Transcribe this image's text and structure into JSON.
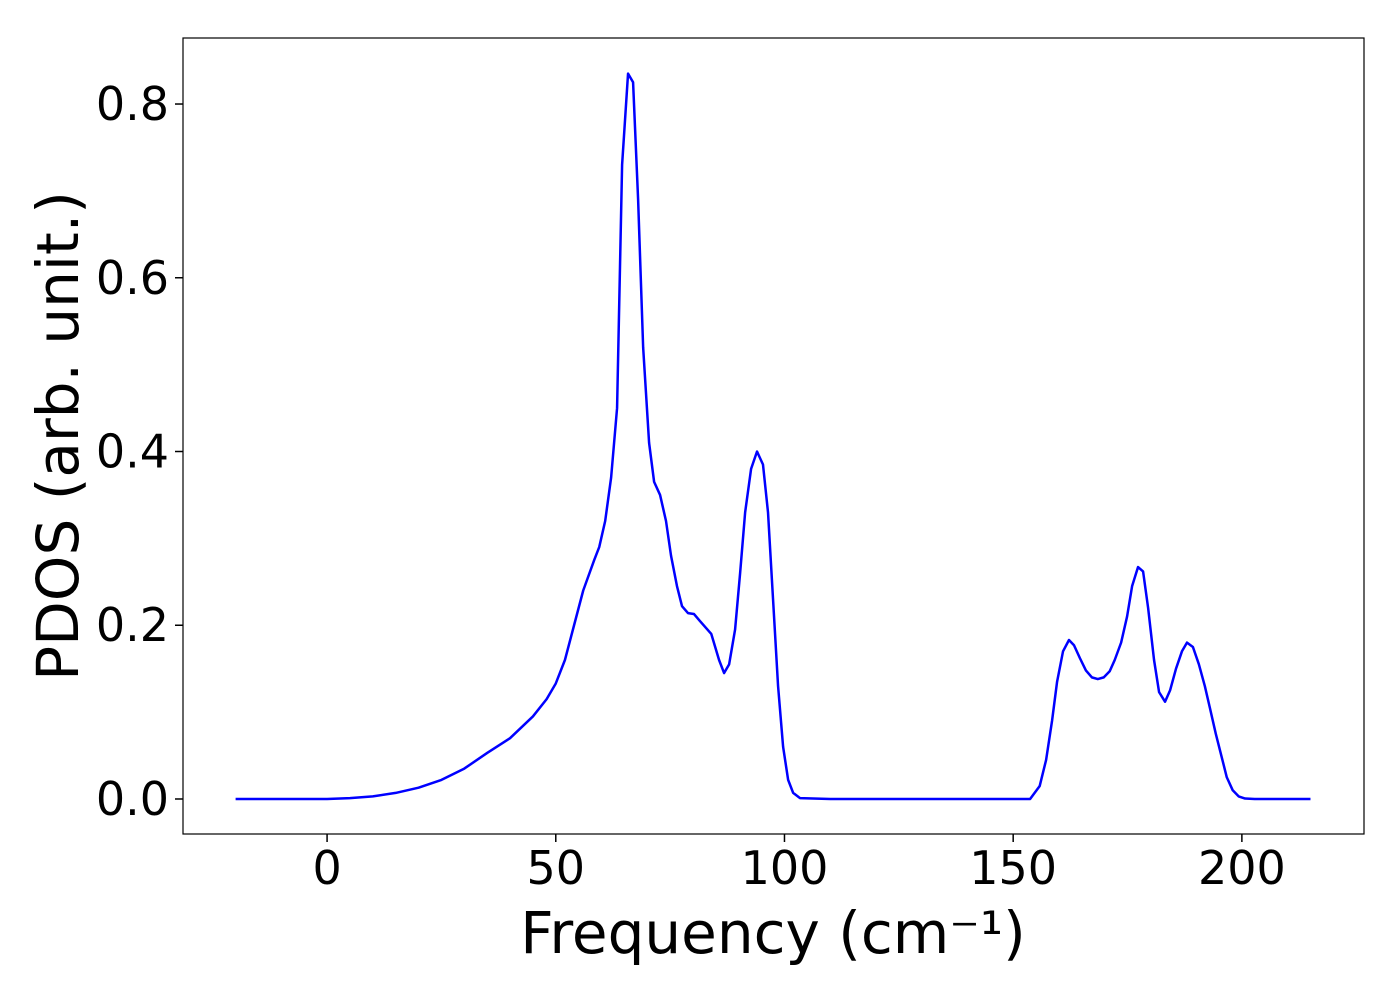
{
  "chart_data": {
    "type": "line",
    "xlabel": "Frequency (cm⁻¹)",
    "ylabel": "PDOS (arb. unit.)",
    "x": [
      -20,
      -10,
      0,
      5,
      10,
      15,
      20,
      25,
      30,
      35,
      40,
      45,
      48,
      50,
      52,
      54,
      56,
      58.4,
      59.5,
      60.8,
      62.1,
      63.4,
      64.5,
      65.8,
      66.9,
      68,
      69.1,
      70.4,
      71.5,
      72.8,
      74.1,
      75.2,
      76.5,
      77.6,
      78.9,
      80.2,
      81.5,
      84,
      85.7,
      86.8,
      87.9,
      89.2,
      90.3,
      91.4,
      92.7,
      94,
      95.3,
      96.4,
      97.5,
      98.6,
      99.7,
      100.8,
      101.9,
      103.4,
      110,
      130,
      150,
      153.7,
      155.8,
      157.2,
      158.5,
      159.6,
      160.9,
      162.2,
      163.3,
      164.6,
      165.9,
      167.2,
      168.5,
      169.8,
      171.1,
      172.2,
      173.6,
      174.9,
      176,
      177.3,
      178.4,
      179.5,
      180.8,
      181.9,
      183.2,
      184.3,
      185.6,
      186.9,
      188,
      189.3,
      190.6,
      191.9,
      193,
      194.3,
      195.6,
      196.7,
      198,
      199.3,
      200.7,
      202.8,
      215
    ],
    "series": [
      {
        "color": "#0000ff",
        "values": [
          0,
          0,
          0,
          0.001,
          0.003,
          0.007,
          0.013,
          0.022,
          0.035,
          0.053,
          0.07,
          0.095,
          0.115,
          0.133,
          0.16,
          0.2,
          0.24,
          0.275,
          0.29,
          0.32,
          0.37,
          0.45,
          0.73,
          0.835,
          0.825,
          0.69,
          0.52,
          0.41,
          0.365,
          0.35,
          0.32,
          0.28,
          0.245,
          0.222,
          0.214,
          0.213,
          0.205,
          0.19,
          0.16,
          0.145,
          0.155,
          0.195,
          0.26,
          0.33,
          0.38,
          0.4,
          0.385,
          0.33,
          0.23,
          0.13,
          0.06,
          0.022,
          0.007,
          0.001,
          0,
          0,
          0,
          0,
          0.015,
          0.045,
          0.09,
          0.135,
          0.17,
          0.183,
          0.177,
          0.162,
          0.148,
          0.14,
          0.138,
          0.14,
          0.147,
          0.16,
          0.18,
          0.21,
          0.245,
          0.267,
          0.262,
          0.22,
          0.16,
          0.123,
          0.112,
          0.125,
          0.15,
          0.17,
          0.18,
          0.175,
          0.155,
          0.13,
          0.105,
          0.075,
          0.048,
          0.025,
          0.01,
          0.003,
          0.0005,
          0,
          0
        ]
      }
    ],
    "xlim": [
      -31.5,
      226.7
    ],
    "ylim": [
      -0.0403,
      0.876
    ],
    "xticks": [
      0,
      50,
      100,
      150,
      200
    ],
    "yticks": [
      {
        "value": 0,
        "label": "0.0"
      },
      0.2,
      0.4,
      0.6,
      0.8
    ],
    "grid": false
  }
}
